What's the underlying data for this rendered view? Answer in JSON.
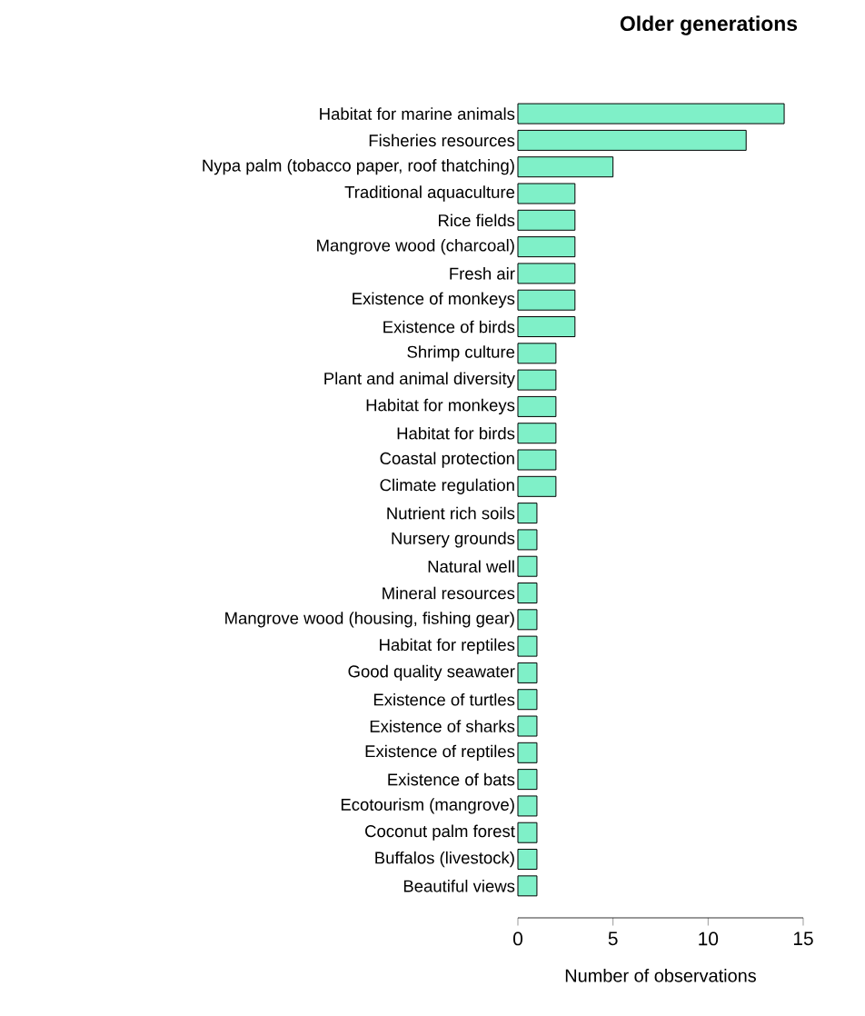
{
  "chart_data": {
    "type": "bar",
    "orientation": "horizontal",
    "title": "Older generations",
    "xlabel": "Number of observations",
    "categories": [
      "Habitat for marine animals",
      "Fisheries resources",
      "Nypa palm (tobacco paper, roof thatching)",
      "Traditional aquaculture",
      "Rice fields",
      "Mangrove wood (charcoal)",
      "Fresh air",
      "Existence of monkeys",
      "Existence of birds",
      "Shrimp culture",
      "Plant and animal diversity",
      "Habitat for monkeys",
      "Habitat for birds",
      "Coastal protection",
      "Climate regulation",
      "Nutrient rich soils",
      "Nursery grounds",
      "Natural well",
      "Mineral resources",
      "Mangrove wood (housing, fishing gear)",
      "Habitat for reptiles",
      "Good quality seawater",
      "Existence of turtles",
      "Existence of sharks",
      "Existence of reptiles",
      "Existence of bats",
      "Ecotourism (mangrove)",
      "Coconut palm forest",
      "Buffalos (livestock)",
      "Beautiful views"
    ],
    "values": [
      14,
      12,
      5,
      3,
      3,
      3,
      3,
      3,
      3,
      2,
      2,
      2,
      2,
      2,
      2,
      1,
      1,
      1,
      1,
      1,
      1,
      1,
      1,
      1,
      1,
      1,
      1,
      1,
      1,
      1
    ],
    "color": "#7ff0c8",
    "xlim": [
      0,
      15
    ],
    "xticks": [
      0,
      5,
      10,
      15
    ]
  }
}
